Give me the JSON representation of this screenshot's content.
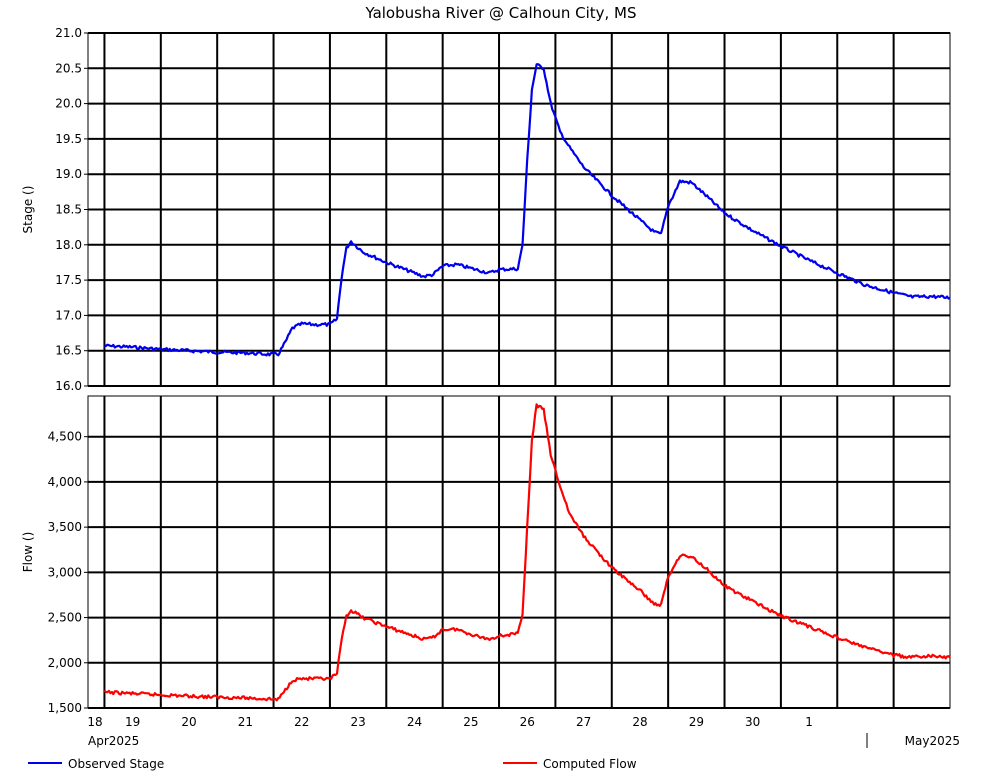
{
  "chart_data": {
    "type": "line",
    "title": "Yalobusha River @ Calhoun City, MS",
    "x_axis": {
      "day_labels": [
        "18",
        "19",
        "20",
        "21",
        "22",
        "23",
        "24",
        "25",
        "26",
        "27",
        "28",
        "29",
        "30",
        "1"
      ],
      "month_labels": [
        "Apr2025",
        "May2025"
      ]
    },
    "panels": [
      {
        "ylabel": "Stage ()",
        "ylim": [
          16.0,
          21.0
        ],
        "yticks": [
          "16.0",
          "16.5",
          "17.0",
          "17.5",
          "18.0",
          "18.5",
          "19.0",
          "19.5",
          "20.0",
          "20.5",
          "21.0"
        ],
        "ytick_values": [
          16.0,
          16.5,
          17.0,
          17.5,
          18.0,
          18.5,
          19.0,
          19.5,
          20.0,
          20.5,
          21.0
        ],
        "series": [
          {
            "name": "Observed Stage",
            "color": "#0000ee",
            "points": [
              [
                "2025-04-18 00:00",
                16.57
              ],
              [
                "2025-04-18 12:00",
                16.55
              ],
              [
                "2025-04-19 00:00",
                16.52
              ],
              [
                "2025-04-19 12:00",
                16.5
              ],
              [
                "2025-04-20 00:00",
                16.48
              ],
              [
                "2025-04-20 12:00",
                16.47
              ],
              [
                "2025-04-20 21:00",
                16.45
              ],
              [
                "2025-04-21 02:00",
                16.45
              ],
              [
                "2025-04-21 05:00",
                16.62
              ],
              [
                "2025-04-21 08:00",
                16.82
              ],
              [
                "2025-04-21 12:00",
                16.88
              ],
              [
                "2025-04-21 18:00",
                16.87
              ],
              [
                "2025-04-22 00:00",
                16.87
              ],
              [
                "2025-04-22 03:00",
                16.95
              ],
              [
                "2025-04-22 05:00",
                17.55
              ],
              [
                "2025-04-22 07:00",
                17.95
              ],
              [
                "2025-04-22 09:00",
                18.05
              ],
              [
                "2025-04-22 14:00",
                17.9
              ],
              [
                "2025-04-23 00:00",
                17.75
              ],
              [
                "2025-04-23 08:00",
                17.65
              ],
              [
                "2025-04-23 16:00",
                17.55
              ],
              [
                "2025-04-23 20:00",
                17.58
              ],
              [
                "2025-04-24 00:00",
                17.7
              ],
              [
                "2025-04-24 06:00",
                17.72
              ],
              [
                "2025-04-24 14:00",
                17.65
              ],
              [
                "2025-04-24 20:00",
                17.6
              ],
              [
                "2025-04-25 00:00",
                17.65
              ],
              [
                "2025-04-25 08:00",
                17.66
              ],
              [
                "2025-04-25 10:00",
                18.0
              ],
              [
                "2025-04-25 12:00",
                19.2
              ],
              [
                "2025-04-25 14:00",
                20.2
              ],
              [
                "2025-04-25 16:00",
                20.55
              ],
              [
                "2025-04-25 19:00",
                20.5
              ],
              [
                "2025-04-25 22:00",
                20.0
              ],
              [
                "2025-04-26 02:00",
                19.6
              ],
              [
                "2025-04-26 06:00",
                19.38
              ],
              [
                "2025-04-26 12:00",
                19.1
              ],
              [
                "2025-04-27 00:00",
                18.7
              ],
              [
                "2025-04-27 12:00",
                18.35
              ],
              [
                "2025-04-27 18:00",
                18.18
              ],
              [
                "2025-04-27 21:00",
                18.15
              ],
              [
                "2025-04-28 00:00",
                18.55
              ],
              [
                "2025-04-28 05:00",
                18.9
              ],
              [
                "2025-04-28 10:00",
                18.88
              ],
              [
                "2025-04-28 16:00",
                18.7
              ],
              [
                "2025-04-29 00:00",
                18.45
              ],
              [
                "2025-04-29 12:00",
                18.2
              ],
              [
                "2025-04-30 00:00",
                17.98
              ],
              [
                "2025-04-30 12:00",
                17.78
              ],
              [
                "2025-05-01 00:00",
                17.6
              ],
              [
                "2025-05-01 12:00",
                17.43
              ],
              [
                "2025-05-02 00:00",
                17.32
              ],
              [
                "2025-05-02 08:00",
                17.26
              ],
              [
                "2025-05-02 16:00",
                17.27
              ],
              [
                "2025-05-03 00:00",
                17.25
              ]
            ]
          }
        ]
      },
      {
        "ylabel": "Flow ()",
        "ylim": [
          1500,
          4950
        ],
        "yticks": [
          "1,500",
          "2,000",
          "2,500",
          "3,000",
          "3,500",
          "4,000",
          "4,500"
        ],
        "ytick_values": [
          1500,
          2000,
          2500,
          3000,
          3500,
          4000,
          4500
        ],
        "series": [
          {
            "name": "Computed Flow",
            "color": "#ff0000",
            "points": [
              [
                "2025-04-18 00:00",
                1675
              ],
              [
                "2025-04-18 12:00",
                1660
              ],
              [
                "2025-04-19 00:00",
                1645
              ],
              [
                "2025-04-19 12:00",
                1632
              ],
              [
                "2025-04-20 00:00",
                1620
              ],
              [
                "2025-04-20 12:00",
                1612
              ],
              [
                "2025-04-20 21:00",
                1600
              ],
              [
                "2025-04-21 02:00",
                1595
              ],
              [
                "2025-04-21 05:00",
                1700
              ],
              [
                "2025-04-21 08:00",
                1810
              ],
              [
                "2025-04-21 12:00",
                1825
              ],
              [
                "2025-04-21 18:00",
                1822
              ],
              [
                "2025-04-22 00:00",
                1820
              ],
              [
                "2025-04-22 03:00",
                1880
              ],
              [
                "2025-04-22 05:00",
                2250
              ],
              [
                "2025-04-22 07:00",
                2520
              ],
              [
                "2025-04-22 09:00",
                2580
              ],
              [
                "2025-04-22 14:00",
                2500
              ],
              [
                "2025-04-23 00:00",
                2400
              ],
              [
                "2025-04-23 08:00",
                2330
              ],
              [
                "2025-04-23 16:00",
                2260
              ],
              [
                "2025-04-23 20:00",
                2280
              ],
              [
                "2025-04-24 00:00",
                2370
              ],
              [
                "2025-04-24 06:00",
                2370
              ],
              [
                "2025-04-24 14:00",
                2300
              ],
              [
                "2025-04-24 20:00",
                2260
              ],
              [
                "2025-04-25 00:00",
                2300
              ],
              [
                "2025-04-25 08:00",
                2320
              ],
              [
                "2025-04-25 10:00",
                2550
              ],
              [
                "2025-04-25 12:00",
                3500
              ],
              [
                "2025-04-25 14:00",
                4450
              ],
              [
                "2025-04-25 16:00",
                4850
              ],
              [
                "2025-04-25 19:00",
                4800
              ],
              [
                "2025-04-25 22:00",
                4300
              ],
              [
                "2025-04-26 02:00",
                3950
              ],
              [
                "2025-04-26 06:00",
                3650
              ],
              [
                "2025-04-26 12:00",
                3400
              ],
              [
                "2025-04-27 00:00",
                3050
              ],
              [
                "2025-04-27 12:00",
                2800
              ],
              [
                "2025-04-27 18:00",
                2650
              ],
              [
                "2025-04-27 21:00",
                2640
              ],
              [
                "2025-04-28 00:00",
                2950
              ],
              [
                "2025-04-28 05:00",
                3190
              ],
              [
                "2025-04-28 10:00",
                3170
              ],
              [
                "2025-04-28 16:00",
                3050
              ],
              [
                "2025-04-29 00:00",
                2850
              ],
              [
                "2025-04-29 12:00",
                2680
              ],
              [
                "2025-04-30 00:00",
                2520
              ],
              [
                "2025-04-30 12:00",
                2400
              ],
              [
                "2025-05-01 00:00",
                2280
              ],
              [
                "2025-05-01 12:00",
                2170
              ],
              [
                "2025-05-02 00:00",
                2085
              ],
              [
                "2025-05-02 08:00",
                2060
              ],
              [
                "2025-05-02 16:00",
                2075
              ],
              [
                "2025-05-03 00:00",
                2060
              ]
            ]
          }
        ]
      }
    ],
    "grid": true,
    "legend": {
      "placement": "bottom",
      "entries": [
        {
          "label": "Observed Stage",
          "color": "#0000ee"
        },
        {
          "label": "Computed Flow",
          "color": "#ff0000"
        }
      ]
    }
  }
}
